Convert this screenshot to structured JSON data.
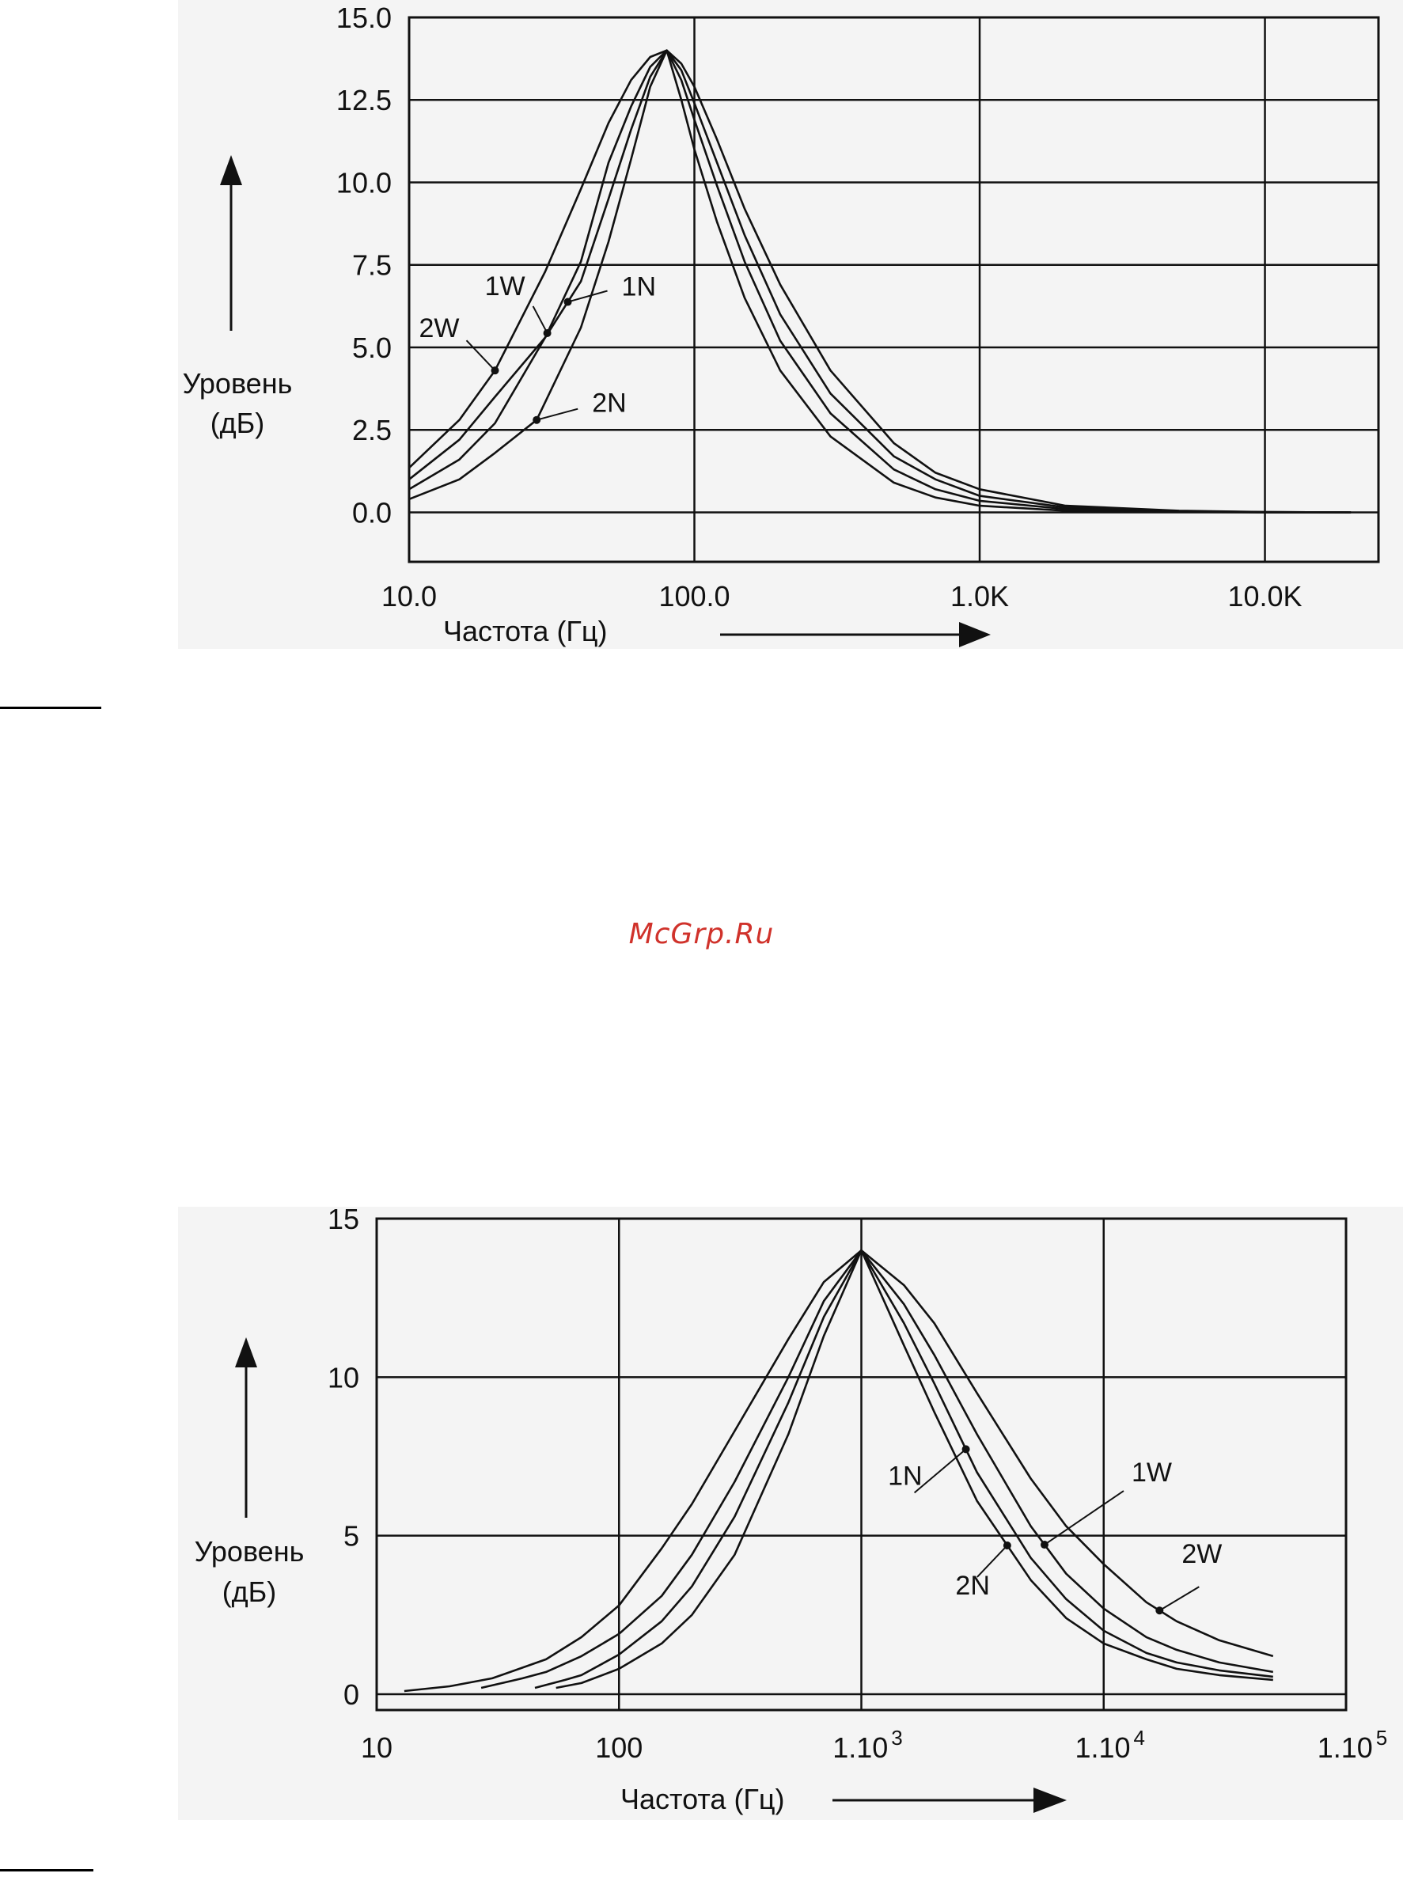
{
  "watermark": "McGrp.Ru",
  "chart_data": [
    {
      "type": "line",
      "title": "",
      "xscale": "log",
      "xlim": [
        10,
        25000
      ],
      "ylim": [
        -1.5,
        15
      ],
      "xticks": [
        10,
        100,
        1000,
        10000
      ],
      "xtick_labels": [
        "10.0",
        "100.0",
        "1.0K",
        "10.0K"
      ],
      "yticks": [
        0,
        2.5,
        5,
        7.5,
        10,
        12.5,
        15
      ],
      "ytick_labels": [
        "0.0",
        "2.5",
        "5.0",
        "7.5",
        "10.0",
        "12.5",
        "15.0"
      ],
      "xlabel": "Частота (Гц)",
      "ylabel": [
        "Уровень",
        "(дБ)"
      ],
      "grid": true,
      "series": [
        {
          "name": "2W",
          "x": [
            10,
            15,
            20,
            30,
            40,
            50,
            60,
            70,
            80,
            90,
            100,
            120,
            150,
            200,
            300,
            500,
            700,
            1000,
            2000,
            5000,
            10000,
            20000
          ],
          "y": [
            1.35,
            2.8,
            4.3,
            7.3,
            9.8,
            11.8,
            13.1,
            13.8,
            14.0,
            13.6,
            12.9,
            11.3,
            9.2,
            6.9,
            4.3,
            2.1,
            1.2,
            0.7,
            0.2,
            0.05,
            0.01,
            0.0
          ]
        },
        {
          "name": "1W",
          "x": [
            10,
            15,
            20,
            30,
            40,
            50,
            60,
            70,
            80,
            90,
            100,
            120,
            150,
            200,
            300,
            500,
            700,
            1000,
            2000,
            5000,
            10000,
            20000
          ],
          "y": [
            1.0,
            2.2,
            3.5,
            5.3,
            7.6,
            10.6,
            12.3,
            13.5,
            14.0,
            13.4,
            12.4,
            10.6,
            8.4,
            6.0,
            3.6,
            1.7,
            1.0,
            0.5,
            0.15,
            0.03,
            0.01,
            0.0
          ]
        },
        {
          "name": "1N",
          "x": [
            10,
            15,
            20,
            30,
            40,
            50,
            60,
            70,
            80,
            90,
            100,
            120,
            150,
            200,
            300,
            500,
            700,
            1000,
            2000,
            5000,
            10000,
            20000
          ],
          "y": [
            0.7,
            1.6,
            2.7,
            5.3,
            7.0,
            9.5,
            11.6,
            13.2,
            14.0,
            13.1,
            11.9,
            9.9,
            7.6,
            5.2,
            3.0,
            1.3,
            0.7,
            0.35,
            0.1,
            0.02,
            0.0,
            0.0
          ]
        },
        {
          "name": "2N",
          "x": [
            10,
            15,
            20,
            28,
            40,
            50,
            60,
            70,
            80,
            90,
            100,
            120,
            150,
            200,
            300,
            500,
            700,
            1000,
            2000,
            5000,
            10000,
            20000
          ],
          "y": [
            0.4,
            1.0,
            1.8,
            2.8,
            5.6,
            8.2,
            10.7,
            12.9,
            14.0,
            12.5,
            11.0,
            8.8,
            6.5,
            4.3,
            2.3,
            0.9,
            0.45,
            0.2,
            0.05,
            0.01,
            0.0,
            0.0
          ]
        }
      ],
      "annotations": [
        "2W",
        "1W",
        "1N",
        "2N"
      ]
    },
    {
      "type": "line",
      "title": "",
      "xscale": "log",
      "xlim": [
        10,
        100000
      ],
      "ylim": [
        -0.5,
        15
      ],
      "xticks": [
        10,
        100,
        1000,
        10000,
        100000
      ],
      "xtick_labels": [
        {
          "base": "10",
          "sup": ""
        },
        {
          "base": "100",
          "sup": ""
        },
        {
          "base": "1.10",
          "sup": "3"
        },
        {
          "base": "1.10",
          "sup": "4"
        },
        {
          "base": "1.10",
          "sup": "5"
        }
      ],
      "yticks": [
        0,
        5,
        10,
        15
      ],
      "ytick_labels": [
        "0",
        "5",
        "10",
        "15"
      ],
      "xlabel": "Частота (Гц)",
      "ylabel": [
        "Уровень",
        "(дБ)"
      ],
      "grid": true,
      "series": [
        {
          "name": "2W",
          "x": [
            13,
            20,
            30,
            50,
            70,
            100,
            150,
            200,
            300,
            500,
            700,
            1000,
            1500,
            2000,
            3000,
            5000,
            7000,
            10000,
            15000,
            20000,
            30000,
            50000
          ],
          "y": [
            0.1,
            0.25,
            0.5,
            1.1,
            1.8,
            2.8,
            4.6,
            6.0,
            8.3,
            11.2,
            13.0,
            14.0,
            12.9,
            11.7,
            9.5,
            6.8,
            5.3,
            4.1,
            2.9,
            2.3,
            1.7,
            1.2
          ]
        },
        {
          "name": "1W",
          "x": [
            27,
            40,
            50,
            70,
            100,
            150,
            200,
            300,
            500,
            700,
            1000,
            1500,
            2000,
            3000,
            5000,
            7000,
            10000,
            15000,
            20000,
            30000,
            50000
          ],
          "y": [
            0.2,
            0.5,
            0.7,
            1.2,
            1.9,
            3.1,
            4.4,
            6.7,
            10.0,
            12.4,
            14.0,
            12.3,
            10.7,
            8.2,
            5.3,
            3.8,
            2.7,
            1.8,
            1.4,
            1.0,
            0.7
          ]
        },
        {
          "name": "1N",
          "x": [
            45,
            60,
            70,
            100,
            150,
            200,
            300,
            500,
            700,
            1000,
            1500,
            2000,
            3000,
            5000,
            7000,
            10000,
            15000,
            20000,
            30000,
            50000
          ],
          "y": [
            0.2,
            0.45,
            0.6,
            1.25,
            2.3,
            3.4,
            5.6,
            9.2,
            11.9,
            14.0,
            11.7,
            9.8,
            7.0,
            4.3,
            3.0,
            2.0,
            1.3,
            1.0,
            0.75,
            0.55
          ]
        },
        {
          "name": "2N",
          "x": [
            55,
            70,
            100,
            150,
            200,
            300,
            500,
            700,
            1000,
            1500,
            2000,
            3000,
            5000,
            7000,
            10000,
            15000,
            20000,
            30000,
            50000
          ],
          "y": [
            0.2,
            0.35,
            0.8,
            1.6,
            2.5,
            4.4,
            8.2,
            11.3,
            14.0,
            11.0,
            8.9,
            6.1,
            3.6,
            2.4,
            1.6,
            1.1,
            0.8,
            0.6,
            0.45
          ]
        }
      ],
      "annotations": [
        "1N",
        "1W",
        "2W",
        "2N"
      ]
    }
  ]
}
